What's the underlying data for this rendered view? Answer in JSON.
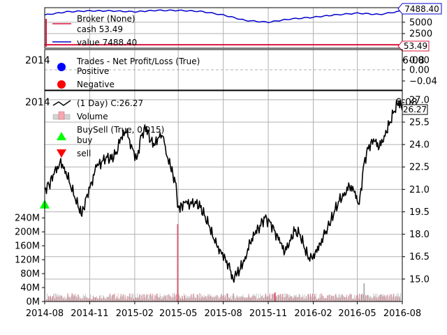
{
  "chart_data": [
    {
      "type": "line",
      "title": "",
      "legend": {
        "placement": "top-left",
        "entries": [
          "Broker (None)",
          "cash 53.49",
          "value 7488.40"
        ]
      },
      "series": [
        {
          "name": "cash 53.49",
          "color": "#dc143c",
          "x": [
            "2014-08-01",
            "2016-08-01"
          ],
          "values": [
            53.49,
            53.49
          ]
        },
        {
          "name": "value 7488.40",
          "color": "#0000cd",
          "x": [
            "2014-08-01",
            "2014-09-15",
            "2014-11-01",
            "2014-12-15",
            "2015-02-01",
            "2015-03-15",
            "2015-05-01",
            "2015-06-15",
            "2015-08-01",
            "2015-09-15",
            "2015-11-01",
            "2015-12-15",
            "2016-02-01",
            "2016-03-15",
            "2016-05-01",
            "2016-06-15",
            "2016-08-01"
          ],
          "values": [
            6600,
            7300,
            7500,
            7500,
            7300,
            7600,
            7600,
            7400,
            6600,
            5400,
            5000,
            5700,
            6100,
            6600,
            7000,
            6700,
            7488.4
          ]
        }
      ],
      "yticks": [
        0,
        2500,
        5000
      ],
      "ylim": [
        -700,
        8200
      ],
      "last_value_tags": [
        {
          "label": "7488.40",
          "color": "#0000cd"
        },
        {
          "label": "53.49",
          "color": "#dc143c"
        }
      ]
    },
    {
      "type": "scatter",
      "legend": {
        "placement": "top-left",
        "entries": [
          "Trades - Net Profit/Loss (True)",
          "Positive",
          "Negative"
        ]
      },
      "series": [
        {
          "name": "Positive",
          "color": "#0000ff",
          "values": []
        },
        {
          "name": "Negative",
          "color": "#ff0000",
          "values": []
        }
      ],
      "yticks": [
        "0.00",
        "0.00",
        "−0.04"
      ],
      "ylim": [
        -0.06,
        0.06
      ]
    },
    {
      "type": "line",
      "legend": {
        "placement": "top-left",
        "entries": [
          "(1 Day) C:26.27",
          "Volume",
          "BuySell (True, 0.015)",
          "buy",
          "sell"
        ]
      },
      "x_start": "2014-08-01",
      "x_end": "2016-08-01",
      "xticks": [
        "2014-08",
        "2014-11",
        "2015-02",
        "2015-05",
        "2015-08",
        "2015-11",
        "2016-02",
        "2016-05",
        "2016-08"
      ],
      "price_yticks": [
        15.0,
        16.5,
        18.0,
        19.5,
        21.0,
        22.5,
        24.0,
        25.5,
        27.0
      ],
      "price_ylim": [
        13.5,
        27.6
      ],
      "volume_yticks": [
        "0M",
        "40M",
        "80M",
        "120M",
        "160M",
        "200M",
        "240M"
      ],
      "volume_ylim": [
        0,
        605
      ],
      "close_series": {
        "name": "(1 Day) C:26.27",
        "color": "#000000",
        "x": [
          "2014-08-01",
          "2014-08-10",
          "2014-08-20",
          "2014-09-01",
          "2014-09-10",
          "2014-09-20",
          "2014-10-01",
          "2014-10-10",
          "2014-10-16",
          "2014-10-25",
          "2014-11-05",
          "2014-11-15",
          "2014-11-25",
          "2014-12-05",
          "2014-12-15",
          "2014-12-25",
          "2015-01-05",
          "2015-01-15",
          "2015-01-25",
          "2015-02-05",
          "2015-02-15",
          "2015-02-25",
          "2015-03-05",
          "2015-03-15",
          "2015-03-25",
          "2015-04-01",
          "2015-04-08",
          "2015-04-15",
          "2015-04-25",
          "2015-05-01",
          "2015-05-08",
          "2015-05-15",
          "2015-05-25",
          "2015-06-05",
          "2015-06-15",
          "2015-06-25",
          "2015-07-05",
          "2015-07-15",
          "2015-07-25",
          "2015-08-05",
          "2015-08-15",
          "2015-08-21",
          "2015-08-28",
          "2015-09-05",
          "2015-09-15",
          "2015-09-25",
          "2015-10-05",
          "2015-10-15",
          "2015-10-25",
          "2015-11-05",
          "2015-11-15",
          "2015-11-25",
          "2015-12-05",
          "2015-12-15",
          "2015-12-25",
          "2016-01-05",
          "2016-01-15",
          "2016-01-25",
          "2016-02-05",
          "2016-02-15",
          "2016-02-25",
          "2016-03-05",
          "2016-03-15",
          "2016-03-25",
          "2016-04-05",
          "2016-04-15",
          "2016-04-25",
          "2016-05-01",
          "2016-05-05",
          "2016-05-15",
          "2016-05-25",
          "2016-06-05",
          "2016-06-15",
          "2016-06-25",
          "2016-07-05",
          "2016-07-15",
          "2016-07-25",
          "2016-08-01"
        ],
        "values": [
          21.0,
          21.3,
          22.0,
          22.8,
          22.5,
          21.5,
          20.5,
          19.7,
          19.2,
          20.5,
          21.5,
          22.5,
          22.8,
          23.2,
          23.0,
          23.5,
          24.5,
          24.8,
          24.0,
          23.0,
          24.6,
          25.2,
          24.2,
          24.0,
          24.8,
          24.5,
          23.2,
          22.5,
          21.5,
          19.8,
          20.0,
          20.1,
          20.0,
          20.2,
          19.8,
          19.2,
          18.4,
          17.4,
          17.0,
          16.4,
          15.6,
          15.0,
          15.2,
          15.7,
          16.5,
          17.4,
          18.0,
          18.6,
          19.1,
          18.8,
          18.2,
          17.4,
          16.8,
          17.6,
          18.2,
          18.0,
          17.0,
          16.2,
          16.8,
          17.4,
          18.0,
          18.6,
          19.5,
          20.2,
          20.8,
          21.2,
          20.8,
          20.2,
          20.0,
          22.8,
          24.0,
          24.2,
          23.8,
          24.6,
          25.3,
          26.2,
          26.9,
          26.27
        ]
      },
      "volume_series": {
        "name": "Volume",
        "x": [
          "2015-04-30",
          "2015-11-15",
          "2016-05-15"
        ],
        "values": [
          222,
          26,
          52
        ]
      },
      "buy_markers": {
        "name": "buy",
        "color": "#00ff00",
        "x": [
          "2014-08-01"
        ],
        "values": [
          20.0
        ]
      },
      "sell_markers": {
        "name": "sell",
        "color": "#ff0000",
        "x": [],
        "values": []
      },
      "last_value_tag": {
        "label": "26.27"
      },
      "partial_labels": {
        "top_panel_left": "2014",
        "top_panel_right": "6-08",
        "main_panel_left": "2014",
        "main_panel_right": "6-08"
      }
    }
  ]
}
